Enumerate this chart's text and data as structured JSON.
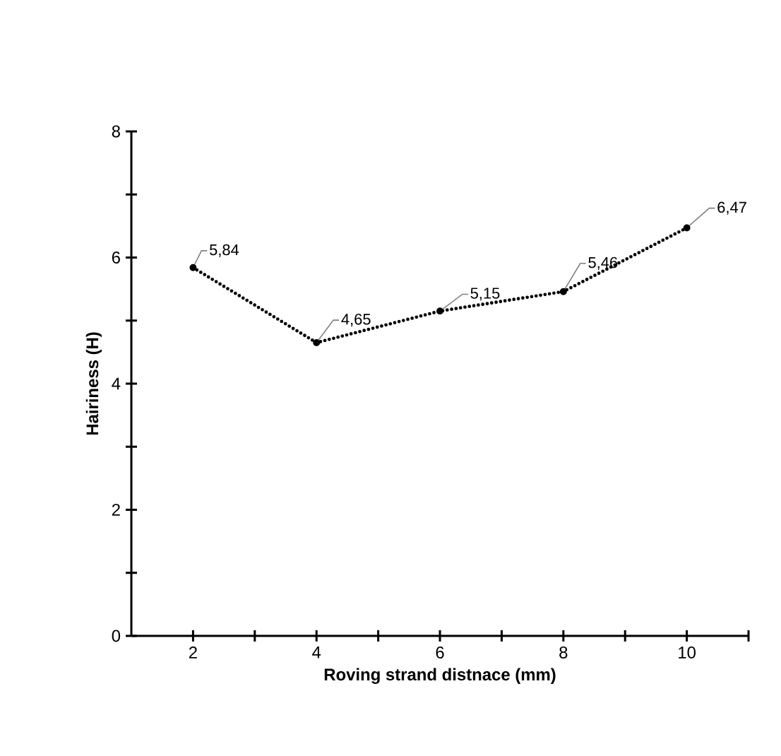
{
  "chart_data": {
    "type": "line",
    "xlabel": "Roving strand distnace (mm)",
    "ylabel": "Hairiness (H)",
    "x": [
      2,
      4,
      6,
      8,
      10
    ],
    "series": [
      {
        "color": "#000000",
        "values": [
          5.84,
          4.65,
          5.15,
          5.46,
          6.47
        ],
        "value_labels": [
          "5,84",
          "4,65",
          "5,15",
          "5,46",
          "6,47"
        ]
      }
    ],
    "xlim": [
      1,
      11
    ],
    "xticks": [
      2,
      {
        "value": 3,
        "label": null
      },
      4,
      {
        "value": 5,
        "label": null
      },
      6,
      {
        "value": 7,
        "label": null
      },
      8,
      {
        "value": 9,
        "label": null
      },
      10,
      {
        "value": 11,
        "label": null
      }
    ],
    "ylim": [
      0,
      8
    ],
    "yticks": [
      0,
      {
        "value": 1,
        "label": null
      },
      2,
      {
        "value": 3,
        "label": null
      },
      4,
      {
        "value": 5,
        "label": null
      },
      6,
      {
        "value": 7,
        "label": null
      },
      8
    ],
    "grid": false,
    "marker": "circle",
    "line_style": "dotted"
  }
}
